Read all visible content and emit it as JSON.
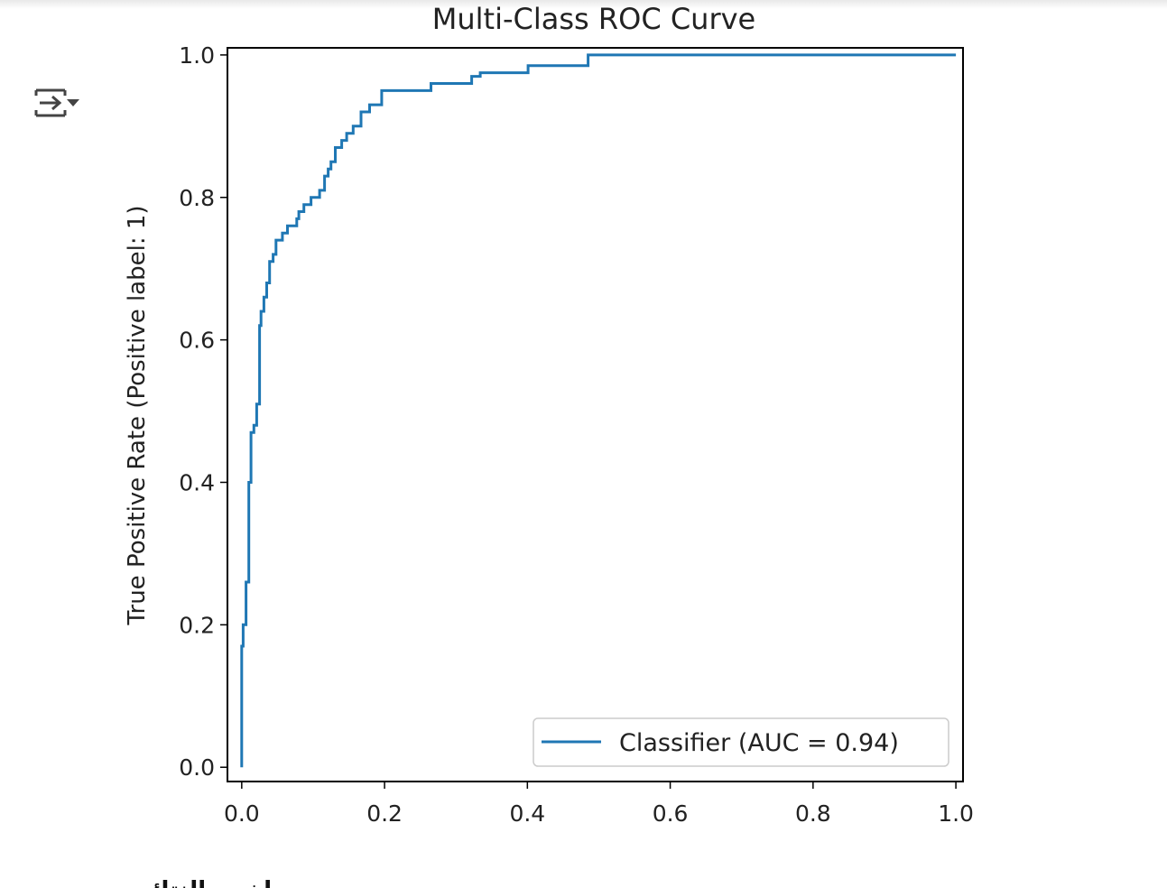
{
  "output_toggle": {
    "icon": "output-collapse-icon"
  },
  "bottom_text": "ملخص النتائج",
  "chart_data": {
    "type": "line",
    "title": "Multi-Class ROC Curve",
    "xlabel": "",
    "ylabel": "True Positive Rate (Positive label: 1)",
    "xlim": [
      -0.02,
      1.01
    ],
    "ylim": [
      -0.02,
      1.01
    ],
    "xticks": [
      "0.0",
      "0.2",
      "0.4",
      "0.6",
      "0.8",
      "1.0"
    ],
    "yticks": [
      "0.0",
      "0.2",
      "0.4",
      "0.6",
      "0.8",
      "1.0"
    ],
    "grid": false,
    "legend": {
      "position": "lower right",
      "entries": [
        "Classifier (AUC = 0.94)"
      ]
    },
    "color": "#1f77b4",
    "series": [
      {
        "name": "Classifier (AUC = 0.94)",
        "x": [
          0,
          0,
          0.002,
          0.002,
          0.006,
          0.006,
          0.01,
          0.01,
          0.013,
          0.013,
          0.017,
          0.017,
          0.021,
          0.021,
          0.025,
          0.025,
          0.027,
          0.027,
          0.031,
          0.031,
          0.035,
          0.035,
          0.039,
          0.039,
          0.044,
          0.044,
          0.048,
          0.048,
          0.057,
          0.057,
          0.064,
          0.064,
          0.077,
          0.077,
          0.08,
          0.08,
          0.087,
          0.087,
          0.097,
          0.097,
          0.109,
          0.109,
          0.116,
          0.116,
          0.121,
          0.121,
          0.125,
          0.125,
          0.131,
          0.131,
          0.14,
          0.14,
          0.147,
          0.147,
          0.156,
          0.156,
          0.167,
          0.167,
          0.179,
          0.179,
          0.196,
          0.196,
          0.265,
          0.265,
          0.322,
          0.322,
          0.334,
          0.334,
          0.401,
          0.401,
          0.485,
          0.485,
          0.518,
          0.518,
          1.0
        ],
        "y": [
          0,
          0.17,
          0.17,
          0.2,
          0.2,
          0.26,
          0.26,
          0.4,
          0.4,
          0.47,
          0.47,
          0.48,
          0.48,
          0.51,
          0.51,
          0.62,
          0.62,
          0.64,
          0.64,
          0.66,
          0.66,
          0.68,
          0.68,
          0.71,
          0.71,
          0.72,
          0.72,
          0.74,
          0.74,
          0.75,
          0.75,
          0.76,
          0.76,
          0.77,
          0.77,
          0.78,
          0.78,
          0.79,
          0.79,
          0.8,
          0.8,
          0.81,
          0.81,
          0.83,
          0.83,
          0.84,
          0.84,
          0.85,
          0.85,
          0.87,
          0.87,
          0.88,
          0.88,
          0.89,
          0.89,
          0.9,
          0.9,
          0.92,
          0.92,
          0.93,
          0.93,
          0.95,
          0.95,
          0.96,
          0.96,
          0.97,
          0.97,
          0.975,
          0.975,
          0.985,
          0.985,
          1.0,
          1.0,
          1.0,
          1.0
        ]
      }
    ]
  }
}
